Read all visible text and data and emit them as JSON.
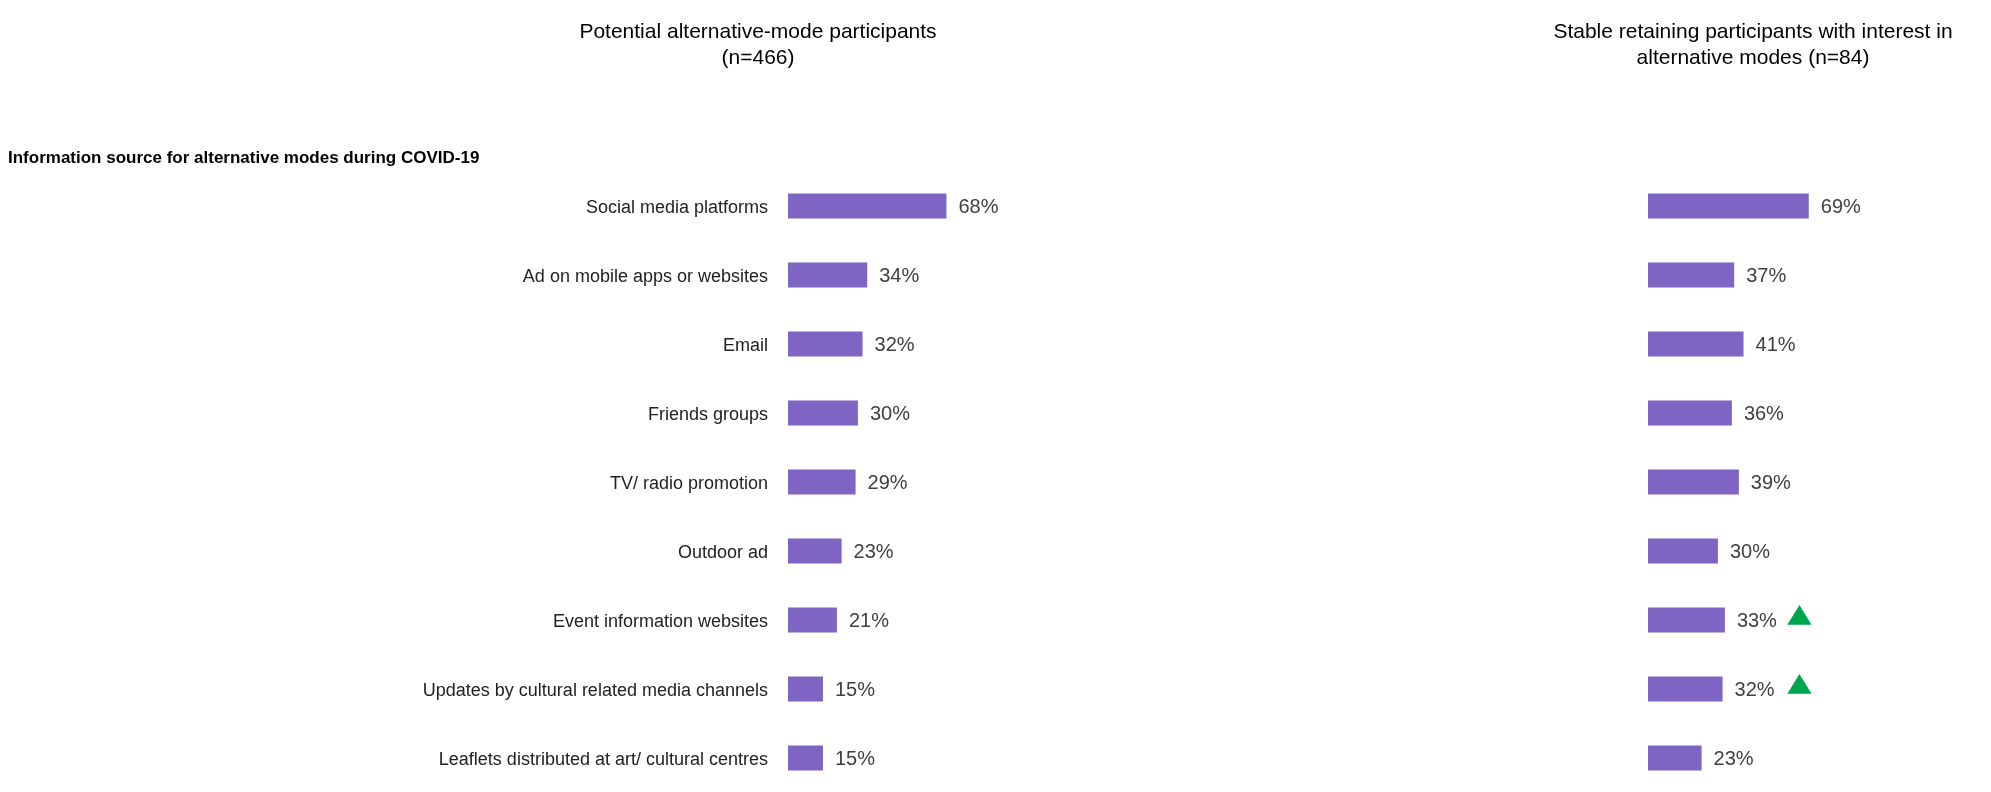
{
  "chart_data": [
    {
      "type": "bar",
      "orientation": "horizontal",
      "title": "Potential alternative-mode participants\n(n=466)",
      "subtitle": "Information source for alternative modes during COVID-19",
      "categories": [
        "Social media platforms",
        "Ad on mobile apps or websites",
        "Email",
        "Friends groups",
        "TV/ radio promotion",
        "Outdoor ad",
        "Event information websites",
        "Updates by cultural related media channels",
        "Leaflets distributed at art/ cultural centres"
      ],
      "series": [
        {
          "color": "#7e65c4",
          "values": [
            68,
            34,
            32,
            30,
            29,
            23,
            21,
            15,
            15
          ],
          "value_labels": [
            "68%",
            "34%",
            "32%",
            "30%",
            "29%",
            "23%",
            "21%",
            "15%",
            "15%"
          ]
        }
      ]
    },
    {
      "type": "bar",
      "orientation": "horizontal",
      "title": "Stable retaining participants with interest in\nalternative modes (n=84)",
      "categories": [
        null,
        null,
        null,
        null,
        null,
        null,
        null,
        null,
        null
      ],
      "series": [
        {
          "color": "#7e65c4",
          "values": [
            69,
            37,
            41,
            36,
            39,
            30,
            33,
            32,
            23
          ],
          "value_labels": [
            "69%",
            "37%",
            "41%",
            "36%",
            "39%",
            "30%",
            "33%",
            "32%",
            "23%"
          ]
        },
        {
          "type": "scatter",
          "marker": "triangle",
          "color": "#00a550",
          "values": [
            null,
            null,
            null,
            null,
            null,
            null,
            65,
            65,
            null
          ]
        }
      ]
    }
  ]
}
